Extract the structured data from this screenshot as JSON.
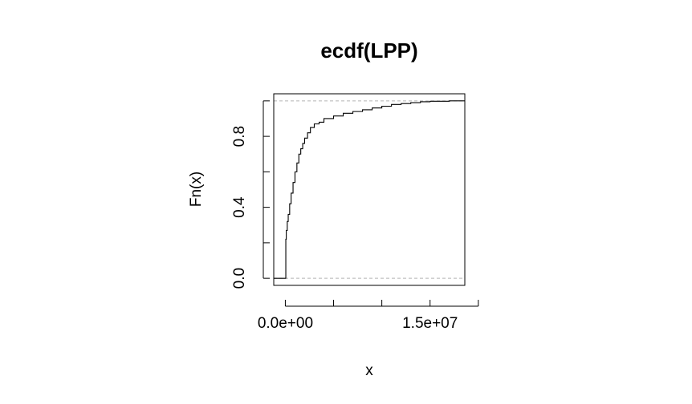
{
  "chart_data": {
    "type": "line",
    "title": "ecdf(LPP)",
    "xlabel": "x",
    "ylabel": "Fn(x)",
    "x_tick_labels": [
      "0.0e+00",
      "1.5e+07"
    ],
    "y_tick_labels": [
      "0.0",
      "0.4",
      "0.8"
    ],
    "xlim": [
      -1200000,
      18600000
    ],
    "ylim": [
      -0.04,
      1.04
    ],
    "x_ticks": [
      0,
      5000000,
      10000000,
      15000000,
      20000000
    ],
    "y_ticks": [
      0,
      0.2,
      0.4,
      0.6,
      0.8,
      1.0
    ],
    "reference_lines_y": [
      0,
      1
    ],
    "series": [
      {
        "x": [
          -1200000,
          50000,
          100000,
          200000,
          300000,
          450000,
          600000,
          800000,
          1000000,
          1200000,
          1400000,
          1600000,
          1800000,
          2000000,
          2300000,
          2600000,
          3000000,
          3500000,
          4000000,
          5000000,
          6000000,
          7000000,
          8000000,
          9000000,
          10000000,
          11000000,
          12000000,
          13000000,
          14000000,
          15000000,
          17000000,
          18600000
        ],
        "y": [
          0,
          0.22,
          0.27,
          0.32,
          0.36,
          0.42,
          0.48,
          0.54,
          0.6,
          0.65,
          0.7,
          0.73,
          0.76,
          0.79,
          0.82,
          0.85,
          0.87,
          0.88,
          0.9,
          0.915,
          0.93,
          0.94,
          0.95,
          0.96,
          0.97,
          0.98,
          0.985,
          0.99,
          0.995,
          0.998,
          1.0,
          1.0
        ]
      }
    ]
  }
}
